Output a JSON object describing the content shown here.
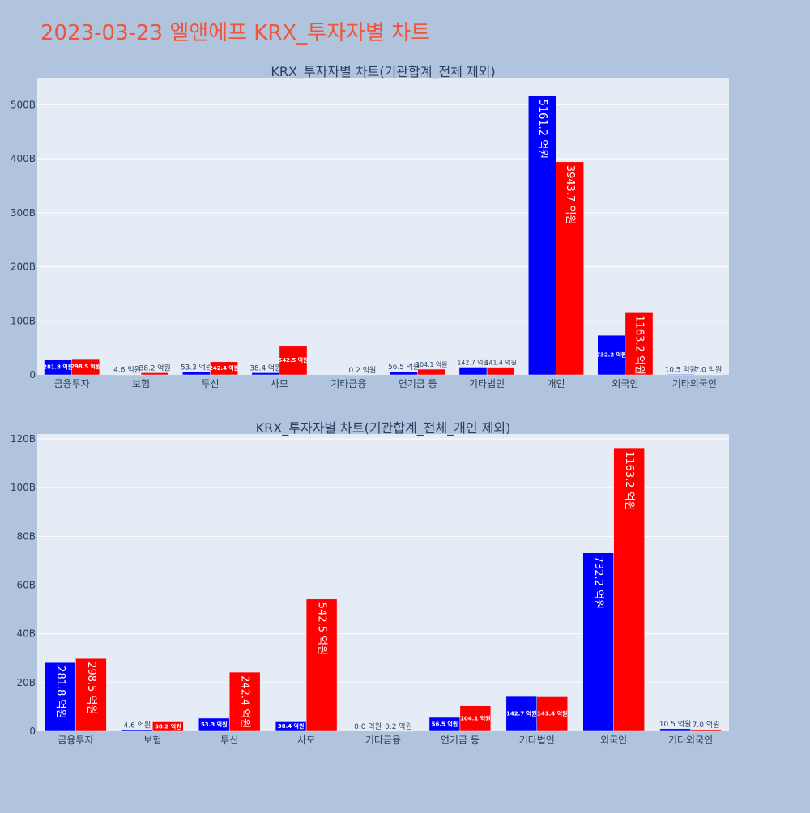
{
  "page_title": "2023-03-23 엘앤에프 KRX_투자자별 차트",
  "colors": {
    "background": "#b0c4de",
    "plot_bg": "#e5ecf6",
    "grid": "#ffffff",
    "title": "#ef553b",
    "text": "#2a3f5f",
    "sell": "#0000ff",
    "buy": "#ff0000"
  },
  "chart_data": [
    {
      "type": "bar",
      "title": "KRX_투자자별 차트(기관합계_전체 제외)",
      "categories": [
        "금융투자",
        "보험",
        "투신",
        "사모",
        "기타금융",
        "연기금 등",
        "기타법인",
        "개인",
        "외국인",
        "기타외국인"
      ],
      "series": [
        {
          "color": "#0000ff",
          "values": [
            28.18,
            0.46,
            5.33,
            3.84,
            0.0,
            5.65,
            14.27,
            516.12,
            73.22,
            1.05
          ],
          "labels": [
            "281.8 억원",
            "4.6 억원",
            "53.3 억원",
            "38.4 억원",
            "",
            "56.5 억원",
            "142.7 억원",
            "5161.2 억원",
            "732.2 억원",
            "10.5 억원"
          ]
        },
        {
          "color": "#ff0000",
          "values": [
            29.85,
            3.82,
            24.24,
            54.25,
            0.02,
            10.41,
            14.14,
            394.37,
            116.32,
            0.7
          ],
          "labels": [
            "298.5 억원",
            "38.2 억원",
            "242.4 억원",
            "542.5 억원",
            "0.2 억원",
            "104.1 억원",
            "141.4 억원",
            "3943.7 억원",
            "1163.2 억원",
            "7.0 억원"
          ]
        }
      ],
      "ylim": [
        0,
        550
      ],
      "yticks": [
        0,
        100,
        200,
        300,
        400,
        500
      ],
      "ytick_labels": [
        "0",
        "100B",
        "200B",
        "300B",
        "400B",
        "500B"
      ],
      "grid": true
    },
    {
      "type": "bar",
      "title": "KRX_투자자별 차트(기관합계_전체_개인 제외)",
      "categories": [
        "금융투자",
        "보험",
        "투신",
        "사모",
        "기타금융",
        "연기금 등",
        "기타법인",
        "외국인",
        "기타외국인"
      ],
      "series": [
        {
          "color": "#0000ff",
          "values": [
            28.18,
            0.46,
            5.33,
            3.84,
            0.0,
            5.65,
            14.27,
            73.22,
            1.05
          ],
          "labels": [
            "281.8 억원",
            "4.6 억원",
            "53.3 억원",
            "38.4 억원",
            "0.0 억원",
            "56.5 억원",
            "142.7 억원",
            "732.2 억원",
            "10.5 억원"
          ]
        },
        {
          "color": "#ff0000",
          "values": [
            29.85,
            3.82,
            24.24,
            54.25,
            0.02,
            10.41,
            14.14,
            116.32,
            0.7
          ],
          "labels": [
            "298.5 억원",
            "38.2 억원",
            "242.4 억원",
            "542.5 억원",
            "0.2 억원",
            "104.1 억원",
            "141.4 억원",
            "1163.2 억원",
            "7.0 억원"
          ]
        }
      ],
      "ylim": [
        0,
        122
      ],
      "yticks": [
        0,
        20,
        40,
        60,
        80,
        100,
        120
      ],
      "ytick_labels": [
        "0",
        "20B",
        "40B",
        "60B",
        "80B",
        "100B",
        "120B"
      ],
      "grid": true
    }
  ]
}
